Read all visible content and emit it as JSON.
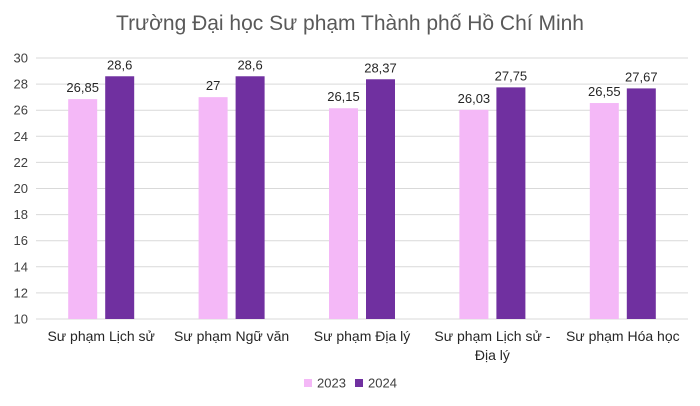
{
  "chart_data": {
    "type": "bar",
    "title": "Trường Đại học Sư phạm Thành phố Hồ Chí Minh",
    "categories": [
      [
        "Sư phạm Lịch sử"
      ],
      [
        "Sư phạm Ngữ văn"
      ],
      [
        "Sư phạm Địa lý"
      ],
      [
        "Sư phạm Lịch sử -",
        "Địa lý"
      ],
      [
        "Sư phạm Hóa học"
      ]
    ],
    "series": [
      {
        "name": "2023",
        "color": "#f4b8f7",
        "values": [
          26.85,
          27,
          26.15,
          26.03,
          26.55
        ],
        "labels": [
          "26,85",
          "27",
          "26,15",
          "26,03",
          "26,55"
        ]
      },
      {
        "name": "2024",
        "color": "#7030a0",
        "values": [
          28.6,
          28.6,
          28.37,
          27.75,
          27.67
        ],
        "labels": [
          "28,6",
          "28,6",
          "28,37",
          "27,75",
          "27,67"
        ]
      }
    ],
    "ylim": [
      10,
      30
    ],
    "yticks": [
      10,
      12,
      14,
      16,
      18,
      20,
      22,
      24,
      26,
      28,
      30
    ],
    "xlabel": "",
    "ylabel": "",
    "grid": true,
    "legend": "bottom"
  }
}
